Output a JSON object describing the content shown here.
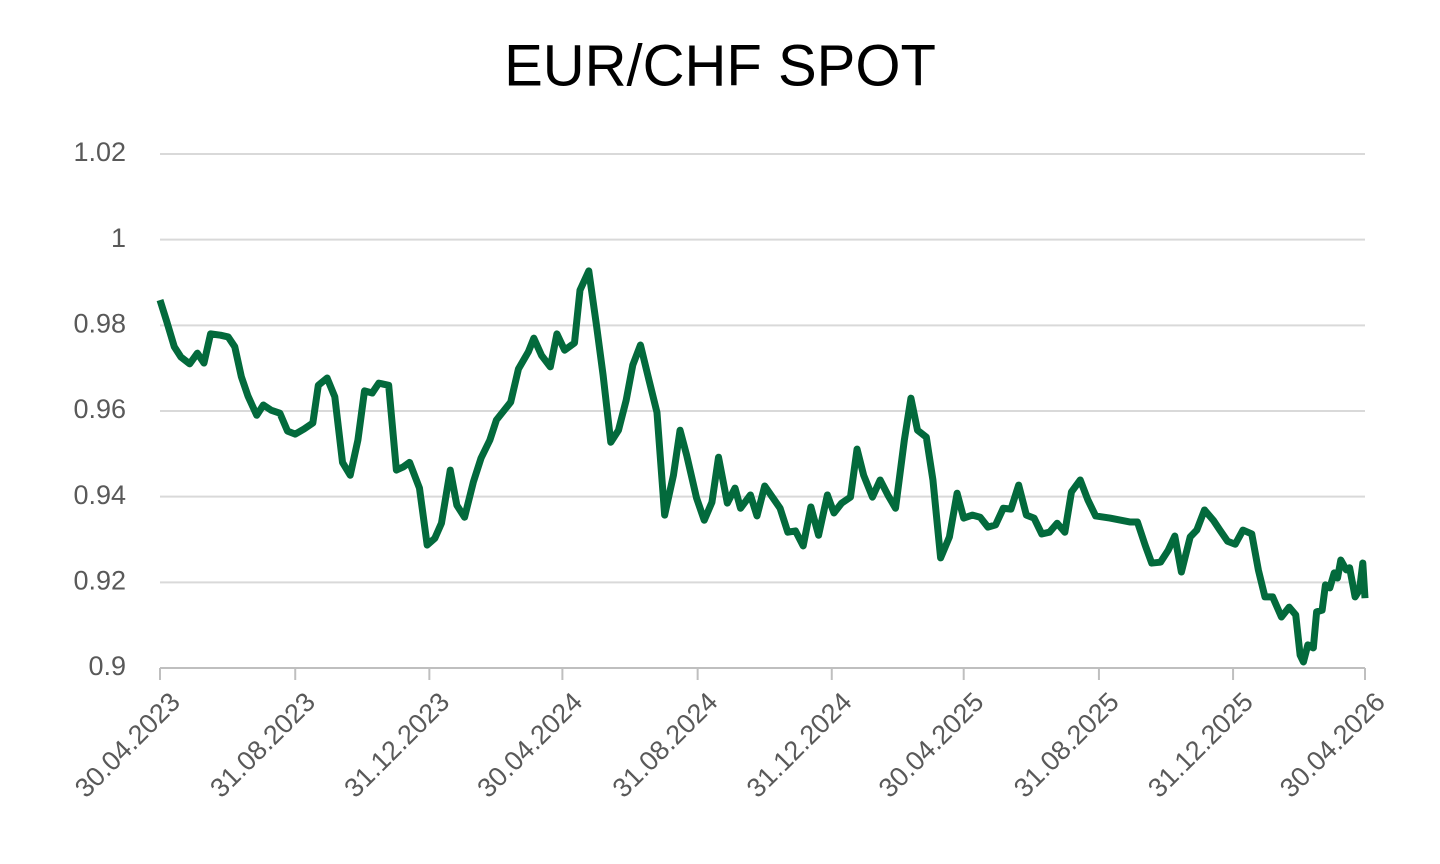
{
  "chart_data": {
    "type": "line",
    "title": "EUR/CHF SPOT",
    "x": [
      "30.04.2023",
      "06.05.2023",
      "13.05.2023",
      "19.05.2023",
      "27.05.2023",
      "03.06.2023",
      "09.06.2023",
      "15.06.2023",
      "24.06.2023",
      "01.07.2023",
      "07.07.2023",
      "13.07.2023",
      "19.07.2023",
      "27.07.2023",
      "02.08.2023",
      "09.08.2023",
      "17.08.2023",
      "24.08.2023",
      "31.08.2023",
      "08.09.2023",
      "16.09.2023",
      "21.09.2023",
      "29.09.2023",
      "06.10.2023",
      "13.10.2023",
      "20.10.2023",
      "27.10.2023",
      "02.11.2023",
      "09.11.2023",
      "15.11.2023",
      "24.11.2023",
      "01.12.2023",
      "07.12.2023",
      "13.12.2023",
      "22.12.2023",
      "29.12.2023",
      "05.01.2024",
      "11.01.2024",
      "19.01.2024",
      "25.01.2024",
      "01.02.2024",
      "09.02.2024",
      "16.02.2024",
      "24.02.2024",
      "01.03.2024",
      "14.03.2024",
      "21.03.2024",
      "30.03.2024",
      "04.04.2024",
      "11.04.2024",
      "19.04.2024",
      "25.04.2024",
      "02.05.2024",
      "11.05.2024",
      "16.05.2024",
      "24.05.2024",
      "31.05.2024",
      "06.06.2024",
      "13.06.2024",
      "20.06.2024",
      "27.06.2024",
      "03.07.2024",
      "10.07.2024",
      "17.07.2024",
      "25.07.2024",
      "01.08.2024",
      "09.08.2024",
      "15.08.2024",
      "21.08.2024",
      "30.08.2024",
      "06.09.2024",
      "13.09.2024",
      "19.09.2024",
      "27.09.2024",
      "04.10.2024",
      "09.10.2024",
      "18.10.2024",
      "24.10.2024",
      "31.10.2024",
      "07.11.2024",
      "14.11.2024",
      "21.11.2024",
      "28.11.2024",
      "05.12.2024",
      "12.12.2024",
      "19.12.2024",
      "27.12.2024",
      "02.01.2025",
      "09.01.2025",
      "17.01.2025",
      "23.01.2025",
      "29.01.2025",
      "06.02.2025",
      "13.02.2025",
      "20.02.2025",
      "27.02.2025",
      "07.03.2025",
      "13.03.2025",
      "19.03.2025",
      "27.03.2025",
      "02.04.2025",
      "09.04.2025",
      "17.04.2025",
      "24.04.2025",
      "30.04.2025",
      "08.05.2025",
      "15.05.2025",
      "22.05.2025",
      "29.05.2025",
      "05.06.2025",
      "12.06.2025",
      "19.06.2025",
      "26.06.2025",
      "03.07.2025",
      "10.07.2025",
      "17.07.2025",
      "24.07.2025",
      "31.07.2025",
      "06.08.2025",
      "14.08.2025",
      "21.08.2025",
      "28.08.2025",
      "10.09.2025",
      "28.09.2025",
      "05.10.2025",
      "12.10.2025",
      "18.10.2025",
      "26.10.2025",
      "02.11.2025",
      "08.11.2025",
      "14.11.2025",
      "22.11.2025",
      "28.11.2025",
      "05.12.2025",
      "13.12.2025",
      "19.12.2025",
      "26.12.2025",
      "02.01.2026",
      "09.01.2026",
      "17.01.2026",
      "23.01.2026",
      "29.01.2026",
      "05.02.2026",
      "13.02.2026",
      "20.02.2026",
      "26.02.2026",
      "02.03.2026",
      "05.03.2026",
      "09.03.2026",
      "14.03.2026",
      "17.03.2026",
      "22.03.2026",
      "25.03.2026",
      "29.03.2026",
      "02.04.2026",
      "05.04.2026",
      "08.04.2026",
      "13.04.2026",
      "16.04.2026",
      "21.04.2026",
      "25.04.2026",
      "28.04.2026",
      "30.04.2026"
    ],
    "series": [
      {
        "name": "EUR/CHF",
        "color": "#036a3c",
        "values": [
          0.9859,
          0.981,
          0.975,
          0.9726,
          0.971,
          0.9735,
          0.9712,
          0.978,
          0.9777,
          0.9773,
          0.975,
          0.968,
          0.9635,
          0.959,
          0.9614,
          0.9602,
          0.9595,
          0.9553,
          0.9546,
          0.9558,
          0.9572,
          0.966,
          0.9677,
          0.9633,
          0.948,
          0.945,
          0.9532,
          0.9647,
          0.9642,
          0.9665,
          0.966,
          0.9462,
          0.9469,
          0.948,
          0.942,
          0.9287,
          0.9303,
          0.9338,
          0.9462,
          0.938,
          0.9352,
          0.9434,
          0.949,
          0.9532,
          0.9579,
          0.9621,
          0.9698,
          0.9738,
          0.977,
          0.973,
          0.9703,
          0.978,
          0.9742,
          0.9759,
          0.9882,
          0.9927,
          0.98,
          0.9684,
          0.9527,
          0.9555,
          0.9625,
          0.9707,
          0.9754,
          0.968,
          0.9597,
          0.9357,
          0.945,
          0.9555,
          0.9497,
          0.9397,
          0.9345,
          0.9387,
          0.9492,
          0.9385,
          0.942,
          0.9373,
          0.9404,
          0.9355,
          0.9425,
          0.9399,
          0.9373,
          0.9317,
          0.932,
          0.9285,
          0.9376,
          0.931,
          0.9404,
          0.9362,
          0.9385,
          0.9399,
          0.9511,
          0.945,
          0.9399,
          0.9439,
          0.9404,
          0.9373,
          0.9532,
          0.963,
          0.9555,
          0.9539,
          0.9439,
          0.9257,
          0.9306,
          0.9408,
          0.935,
          0.9357,
          0.9352,
          0.9329,
          0.9334,
          0.9373,
          0.9371,
          0.9427,
          0.9357,
          0.935,
          0.9313,
          0.9317,
          0.9338,
          0.9317,
          0.9411,
          0.9439,
          0.9392,
          0.9355,
          0.935,
          0.9341,
          0.9341,
          0.9287,
          0.9245,
          0.9247,
          0.9275,
          0.9308,
          0.9224,
          0.9306,
          0.9322,
          0.9369,
          0.9345,
          0.9322,
          0.9296,
          0.9289,
          0.9322,
          0.9313,
          0.9229,
          0.9166,
          0.9166,
          0.9119,
          0.9142,
          0.9124,
          0.903,
          0.9014,
          0.9054,
          0.9047,
          0.9131,
          0.9135,
          0.9194,
          0.9187,
          0.9222,
          0.921,
          0.9252,
          0.9229,
          0.9234,
          0.9166,
          0.9182,
          0.9245,
          0.9163
        ]
      }
    ],
    "xlim": [
      "30.04.2023",
      "30.04.2026"
    ],
    "xticks": [
      "30.04.2023",
      "31.08.2023",
      "31.12.2023",
      "30.04.2024",
      "31.08.2024",
      "31.12.2024",
      "30.04.2025",
      "31.08.2025",
      "31.12.2025",
      "30.04.2026"
    ],
    "ylim": [
      0.9,
      1.02
    ],
    "yticks": [
      0.9,
      0.92,
      0.94,
      0.96,
      0.98,
      1,
      1.02
    ],
    "grid": true
  }
}
